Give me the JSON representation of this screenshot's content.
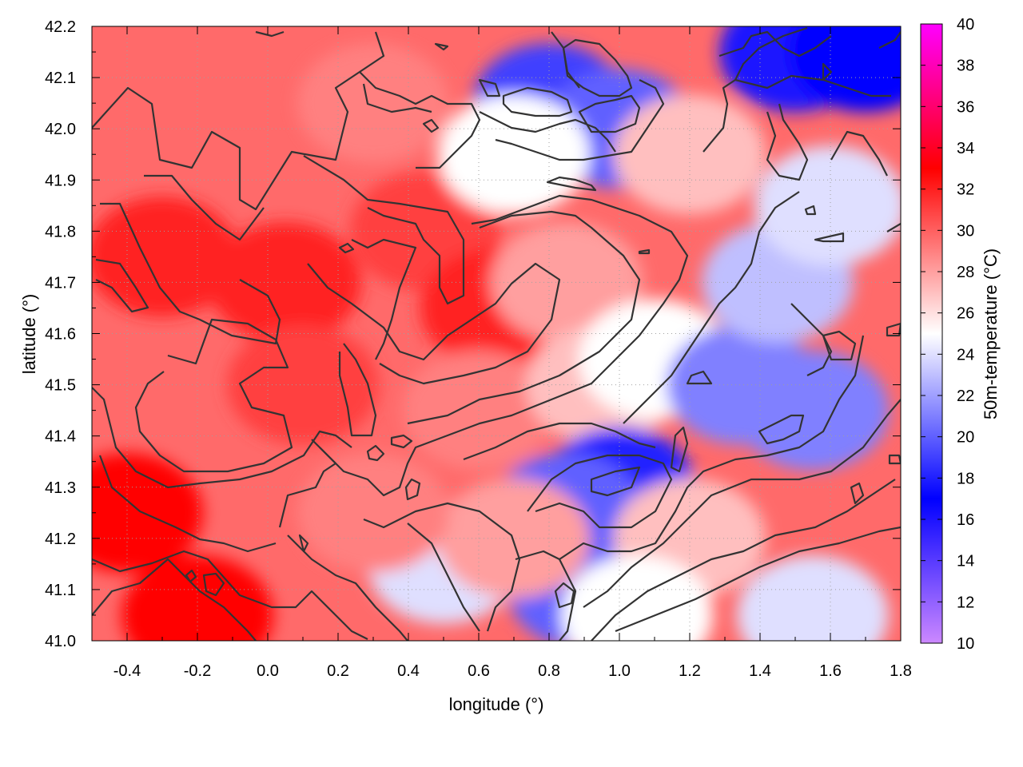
{
  "chart_data": {
    "type": "heatmap",
    "title": "",
    "xlabel": "longitude (°)",
    "ylabel": "latitude (°)",
    "xlim": [
      -0.5,
      1.8
    ],
    "ylim": [
      41.0,
      42.2
    ],
    "xticks": [
      "-0.4",
      "-0.2",
      "0.0",
      "0.2",
      "0.4",
      "0.6",
      "0.8",
      "1.0",
      "1.2",
      "1.4",
      "1.6",
      "1.8"
    ],
    "yticks": [
      "41.0",
      "41.1",
      "41.2",
      "41.3",
      "41.4",
      "41.5",
      "41.6",
      "41.7",
      "41.8",
      "41.9",
      "42.0",
      "42.1",
      "42.2"
    ],
    "grid": true,
    "colorbar": {
      "label": "50m-temperature (°C)",
      "range": [
        10,
        40
      ],
      "ticks": [
        "10",
        "12",
        "14",
        "16",
        "18",
        "20",
        "22",
        "24",
        "26",
        "28",
        "30",
        "32",
        "34",
        "36",
        "38",
        "40"
      ],
      "colors": [
        {
          "value": 10,
          "color": "#cc88ff"
        },
        {
          "value": 17,
          "color": "#0000ff"
        },
        {
          "value": 25,
          "color": "#ffffff"
        },
        {
          "value": 33,
          "color": "#ff0000"
        },
        {
          "value": 40,
          "color": "#ff00ff"
        }
      ]
    },
    "field_regions": [
      {
        "lon": -0.3,
        "lat": 41.75,
        "value": 32
      },
      {
        "lon": -0.4,
        "lat": 41.25,
        "value": 33
      },
      {
        "lon": -0.2,
        "lat": 41.05,
        "value": 33
      },
      {
        "lon": 0.05,
        "lat": 41.7,
        "value": 32
      },
      {
        "lon": 0.1,
        "lat": 41.5,
        "value": 31
      },
      {
        "lon": 0.45,
        "lat": 41.8,
        "value": 31
      },
      {
        "lon": 0.65,
        "lat": 41.65,
        "value": 32
      },
      {
        "lon": 0.6,
        "lat": 41.45,
        "value": 29
      },
      {
        "lon": 0.3,
        "lat": 42.05,
        "value": 29
      },
      {
        "lon": 0.85,
        "lat": 41.7,
        "value": 28
      },
      {
        "lon": 0.95,
        "lat": 41.5,
        "value": 27
      },
      {
        "lon": 1.1,
        "lat": 41.55,
        "value": 25
      },
      {
        "lon": 1.35,
        "lat": 41.5,
        "value": 21
      },
      {
        "lon": 1.55,
        "lat": 41.45,
        "value": 21
      },
      {
        "lon": 1.45,
        "lat": 41.7,
        "value": 23
      },
      {
        "lon": 1.6,
        "lat": 41.85,
        "value": 24
      },
      {
        "lon": 1.0,
        "lat": 41.3,
        "value": 18
      },
      {
        "lon": 0.85,
        "lat": 41.25,
        "value": 20
      },
      {
        "lon": 0.9,
        "lat": 41.1,
        "value": 20
      },
      {
        "lon": 1.2,
        "lat": 41.2,
        "value": 27
      },
      {
        "lon": 1.55,
        "lat": 41.05,
        "value": 24
      },
      {
        "lon": 0.8,
        "lat": 42.05,
        "value": 19
      },
      {
        "lon": 1.0,
        "lat": 42.0,
        "value": 20
      },
      {
        "lon": 1.5,
        "lat": 42.15,
        "value": 16
      },
      {
        "lon": 1.7,
        "lat": 42.15,
        "value": 17
      },
      {
        "lon": 0.7,
        "lat": 41.95,
        "value": 25
      },
      {
        "lon": 1.2,
        "lat": 41.95,
        "value": 27
      },
      {
        "lon": 0.5,
        "lat": 41.15,
        "value": 24
      },
      {
        "lon": 0.7,
        "lat": 41.2,
        "value": 28
      },
      {
        "lon": 0.3,
        "lat": 41.25,
        "value": 29
      },
      {
        "lon": 1.05,
        "lat": 41.05,
        "value": 25
      }
    ]
  }
}
